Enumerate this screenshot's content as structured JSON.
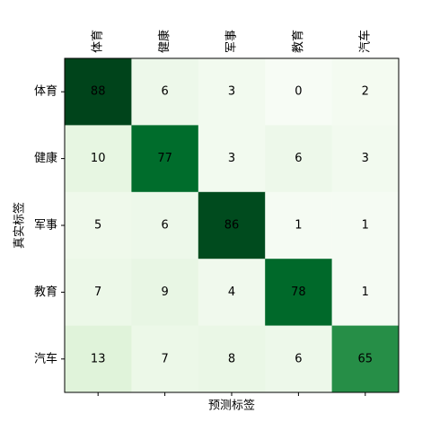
{
  "chart_data": {
    "type": "heatmap",
    "x_categories": [
      "体育",
      "健康",
      "军事",
      "教育",
      "汽车"
    ],
    "y_categories": [
      "体育",
      "健康",
      "军事",
      "教育",
      "汽车"
    ],
    "values": [
      [
        88,
        6,
        3,
        0,
        2
      ],
      [
        10,
        77,
        3,
        6,
        3
      ],
      [
        5,
        6,
        86,
        1,
        1
      ],
      [
        7,
        9,
        4,
        78,
        1
      ],
      [
        13,
        7,
        8,
        6,
        65
      ]
    ],
    "xlabel": "预测标签",
    "ylabel": "真实标签",
    "colormap": "Greens"
  }
}
